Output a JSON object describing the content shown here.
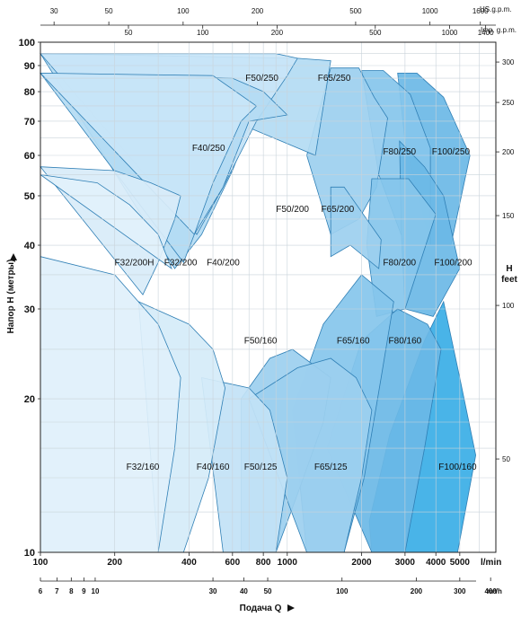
{
  "chart_data": {
    "type": "area",
    "xlabel": "Подача Q",
    "ylabel": "Напор H (метры)",
    "y2label": "H feet",
    "x_scale": "log",
    "y_scale": "log",
    "xlim": [
      100,
      7000
    ],
    "ylim": [
      10,
      100
    ],
    "grid": true,
    "x_unit_lpm": "l/min",
    "x_unit_m3h": "m³/h",
    "x_unit_usgpm": "US.g.p.m.",
    "x_unit_impgpm": "Imp. g.p.m.",
    "x_ticks_lpm": [
      {
        "v": 100,
        "label": "100"
      },
      {
        "v": 200,
        "label": "200"
      },
      {
        "v": 400,
        "label": "400"
      },
      {
        "v": 600,
        "label": "600"
      },
      {
        "v": 800,
        "label": "800"
      },
      {
        "v": 1000,
        "label": "1000"
      },
      {
        "v": 2000,
        "label": "2000"
      },
      {
        "v": 3000,
        "label": "3000"
      },
      {
        "v": 4000,
        "label": "4000"
      },
      {
        "v": 5000,
        "label": "5000"
      }
    ],
    "x_ticks_m3h": [
      {
        "v": 6,
        "label": "6"
      },
      {
        "v": 7,
        "label": "7"
      },
      {
        "v": 8,
        "label": "8"
      },
      {
        "v": 9,
        "label": "9"
      },
      {
        "v": 10,
        "label": "10"
      },
      {
        "v": 30,
        "label": "30"
      },
      {
        "v": 40,
        "label": "40"
      },
      {
        "v": 50,
        "label": "50"
      },
      {
        "v": 100,
        "label": "100"
      },
      {
        "v": 200,
        "label": "200"
      },
      {
        "v": 300,
        "label": "300"
      },
      {
        "v": 400,
        "label": "400"
      }
    ],
    "x_ticks_usgpm": [
      {
        "v": 30,
        "label": "30"
      },
      {
        "v": 50,
        "label": "50"
      },
      {
        "v": 100,
        "label": "100"
      },
      {
        "v": 200,
        "label": "200"
      },
      {
        "v": 500,
        "label": "500"
      },
      {
        "v": 1000,
        "label": "1000"
      },
      {
        "v": 1600,
        "label": "1600"
      }
    ],
    "x_ticks_impgpm": [
      {
        "v": 50,
        "label": "50"
      },
      {
        "v": 100,
        "label": "100"
      },
      {
        "v": 200,
        "label": "200"
      },
      {
        "v": 500,
        "label": "500"
      },
      {
        "v": 1000,
        "label": "1000"
      },
      {
        "v": 1400,
        "label": "1400"
      }
    ],
    "y_ticks_m": [
      {
        "v": 10,
        "label": "10"
      },
      {
        "v": 20,
        "label": "20"
      },
      {
        "v": 30,
        "label": "30"
      },
      {
        "v": 40,
        "label": "40"
      },
      {
        "v": 50,
        "label": "50"
      },
      {
        "v": 60,
        "label": "60"
      },
      {
        "v": 70,
        "label": "70"
      },
      {
        "v": 80,
        "label": "80"
      },
      {
        "v": 90,
        "label": "90"
      },
      {
        "v": 100,
        "label": "100"
      }
    ],
    "y_ticks_ft": [
      {
        "v": 50,
        "label": "50"
      },
      {
        "v": 100,
        "label": "100"
      },
      {
        "v": 150,
        "label": "150"
      },
      {
        "v": 200,
        "label": "200"
      },
      {
        "v": 250,
        "label": "250"
      },
      {
        "v": 300,
        "label": "300"
      }
    ],
    "series": [
      {
        "name": "F100/250",
        "color": "#6bb8e6",
        "points": [
          [
            2800,
            87
          ],
          [
            3350,
            87
          ],
          [
            4300,
            78
          ],
          [
            5500,
            60
          ],
          [
            4800,
            44
          ],
          [
            4600,
            40
          ],
          [
            3800,
            40
          ],
          [
            3000,
            64
          ]
        ]
      },
      {
        "name": "F80/250",
        "color": "#86c6ec",
        "points": [
          [
            2000,
            88
          ],
          [
            2450,
            88
          ],
          [
            3150,
            79
          ],
          [
            3800,
            62
          ],
          [
            3800,
            40
          ],
          [
            3000,
            40
          ],
          [
            2350,
            55
          ]
        ]
      },
      {
        "name": "F65/250",
        "color": "#9ccfef",
        "points": [
          [
            1500,
            89
          ],
          [
            1950,
            89
          ],
          [
            2250,
            78
          ],
          [
            2550,
            71
          ],
          [
            2300,
            52
          ],
          [
            1950,
            45
          ],
          [
            1500,
            42
          ],
          [
            1200,
            60
          ]
        ]
      },
      {
        "name": "F50/250",
        "color": "#b3dbf3",
        "points": [
          [
            100,
            95
          ],
          [
            1100,
            93
          ],
          [
            1500,
            92
          ],
          [
            1300,
            60
          ],
          [
            700,
            68
          ],
          [
            600,
            56
          ],
          [
            450,
            42
          ],
          [
            350,
            36
          ]
        ]
      },
      {
        "name": "F40/250",
        "color": "#c9e5f7",
        "points": [
          [
            100,
            95
          ],
          [
            900,
            95
          ],
          [
            1100,
            93
          ],
          [
            1000,
            86
          ],
          [
            750,
            70
          ],
          [
            550,
            52
          ],
          [
            430,
            42
          ]
        ]
      },
      {
        "name": "F100/200",
        "color": "#6bb8e6",
        "points": [
          [
            2850,
            64
          ],
          [
            3600,
            57
          ],
          [
            4300,
            50
          ],
          [
            5000,
            36
          ],
          [
            3900,
            29
          ],
          [
            3000,
            30
          ],
          [
            2900,
            42
          ]
        ]
      },
      {
        "name": "F80/200",
        "color": "#86c6ec",
        "points": [
          [
            2200,
            54
          ],
          [
            3100,
            54
          ],
          [
            4000,
            46
          ],
          [
            3000,
            30
          ],
          [
            2300,
            29
          ],
          [
            2100,
            40
          ]
        ]
      },
      {
        "name": "F65/200",
        "color": "#9ccfef",
        "points": [
          [
            1500,
            52
          ],
          [
            1700,
            52
          ],
          [
            2400,
            41
          ],
          [
            2350,
            36
          ],
          [
            1800,
            40
          ],
          [
            1500,
            38
          ]
        ]
      },
      {
        "name": "F50/200",
        "color": "#b3dbf3",
        "points": [
          [
            100,
            87
          ],
          [
            600,
            85
          ],
          [
            800,
            80
          ],
          [
            1000,
            72
          ],
          [
            700,
            70
          ],
          [
            550,
            52
          ],
          [
            420,
            42
          ],
          [
            380,
            37
          ]
        ]
      },
      {
        "name": "F40/200",
        "color": "#c9e5f7",
        "points": [
          [
            100,
            87
          ],
          [
            500,
            86
          ],
          [
            750,
            75
          ],
          [
            650,
            70
          ],
          [
            500,
            53
          ],
          [
            420,
            42
          ]
        ]
      },
      {
        "name": "F32/200H",
        "color": "#d8ecf9",
        "points": [
          [
            100,
            57
          ],
          [
            200,
            56
          ],
          [
            280,
            53
          ],
          [
            370,
            50
          ],
          [
            350,
            45
          ],
          [
            300,
            37
          ],
          [
            260,
            32
          ]
        ]
      },
      {
        "name": "F32/200",
        "color": "#e2f1fb",
        "points": [
          [
            100,
            55
          ],
          [
            170,
            53
          ],
          [
            230,
            48
          ],
          [
            300,
            42
          ],
          [
            340,
            36
          ]
        ]
      },
      {
        "name": "F100/160",
        "color": "#3aaee6",
        "points": [
          [
            2150,
            11.5
          ],
          [
            2600,
            17
          ],
          [
            3600,
            26
          ],
          [
            4300,
            31
          ],
          [
            5000,
            22
          ],
          [
            5800,
            15.5
          ],
          [
            4900,
            10
          ],
          [
            2200,
            10
          ]
        ]
      },
      {
        "name": "F80/160",
        "color": "#6bb8e6",
        "points": [
          [
            1450,
            16
          ],
          [
            2000,
            26
          ],
          [
            2800,
            30
          ],
          [
            3700,
            28
          ],
          [
            4200,
            25
          ],
          [
            3600,
            16
          ],
          [
            3000,
            10
          ],
          [
            2200,
            10
          ]
        ]
      },
      {
        "name": "F65/160",
        "color": "#86c6ec",
        "points": [
          [
            1050,
            19
          ],
          [
            1400,
            28
          ],
          [
            2000,
            35
          ],
          [
            2700,
            31
          ],
          [
            2400,
            22
          ],
          [
            2050,
            14
          ],
          [
            1700,
            10
          ],
          [
            1200,
            10
          ]
        ]
      },
      {
        "name": "F50/160",
        "color": "#9ccfef",
        "points": [
          [
            650,
            20
          ],
          [
            850,
            24
          ],
          [
            1050,
            25
          ],
          [
            1500,
            22
          ],
          [
            1400,
            18
          ],
          [
            1100,
            13
          ],
          [
            900,
            10
          ],
          [
            650,
            10
          ]
        ]
      },
      {
        "name": "F65/125",
        "color": "#9ccfef",
        "points": [
          [
            700,
            20
          ],
          [
            1100,
            23
          ],
          [
            1500,
            24
          ],
          [
            1900,
            22
          ],
          [
            2200,
            19
          ],
          [
            2000,
            14
          ],
          [
            1700,
            10
          ],
          [
            1200,
            10
          ]
        ]
      },
      {
        "name": "F50/125",
        "color": "#c2e2f6",
        "points": [
          [
            450,
            22
          ],
          [
            700,
            21
          ],
          [
            850,
            19
          ],
          [
            1000,
            14
          ],
          [
            900,
            10
          ],
          [
            550,
            10
          ]
        ]
      },
      {
        "name": "F40/160",
        "color": "#d5ebf9",
        "points": [
          [
            250,
            31
          ],
          [
            400,
            28
          ],
          [
            500,
            25
          ],
          [
            560,
            21
          ],
          [
            480,
            14
          ],
          [
            380,
            10
          ],
          [
            300,
            10
          ]
        ]
      },
      {
        "name": "F32/160",
        "color": "#e0f0fb",
        "points": [
          [
            100,
            38
          ],
          [
            200,
            35
          ],
          [
            300,
            28
          ],
          [
            370,
            22
          ],
          [
            350,
            16
          ],
          [
            300,
            10
          ],
          [
            100,
            10
          ]
        ]
      }
    ],
    "labels": [
      {
        "text": "F50/250",
        "q": 790,
        "h": 85
      },
      {
        "text": "F65/250",
        "q": 1550,
        "h": 85
      },
      {
        "text": "F40/250",
        "q": 480,
        "h": 62
      },
      {
        "text": "F80/250",
        "q": 2850,
        "h": 61
      },
      {
        "text": "F100/250",
        "q": 4600,
        "h": 61
      },
      {
        "text": "F50/200",
        "q": 1050,
        "h": 47
      },
      {
        "text": "F65/200",
        "q": 1600,
        "h": 47
      },
      {
        "text": "F32/200H",
        "q": 240,
        "h": 37
      },
      {
        "text": "F32/200",
        "q": 370,
        "h": 37
      },
      {
        "text": "F40/200",
        "q": 550,
        "h": 37
      },
      {
        "text": "F80/200",
        "q": 2850,
        "h": 37
      },
      {
        "text": "F100/200",
        "q": 4700,
        "h": 37
      },
      {
        "text": "F50/160",
        "q": 780,
        "h": 26
      },
      {
        "text": "F65/160",
        "q": 1850,
        "h": 26
      },
      {
        "text": "F80/160",
        "q": 3000,
        "h": 26
      },
      {
        "text": "F32/160",
        "q": 260,
        "h": 14.7
      },
      {
        "text": "F40/160",
        "q": 500,
        "h": 14.7
      },
      {
        "text": "F50/125",
        "q": 780,
        "h": 14.7
      },
      {
        "text": "F65/125",
        "q": 1500,
        "h": 14.7
      },
      {
        "text": "F100/160",
        "q": 4900,
        "h": 14.7
      }
    ]
  }
}
